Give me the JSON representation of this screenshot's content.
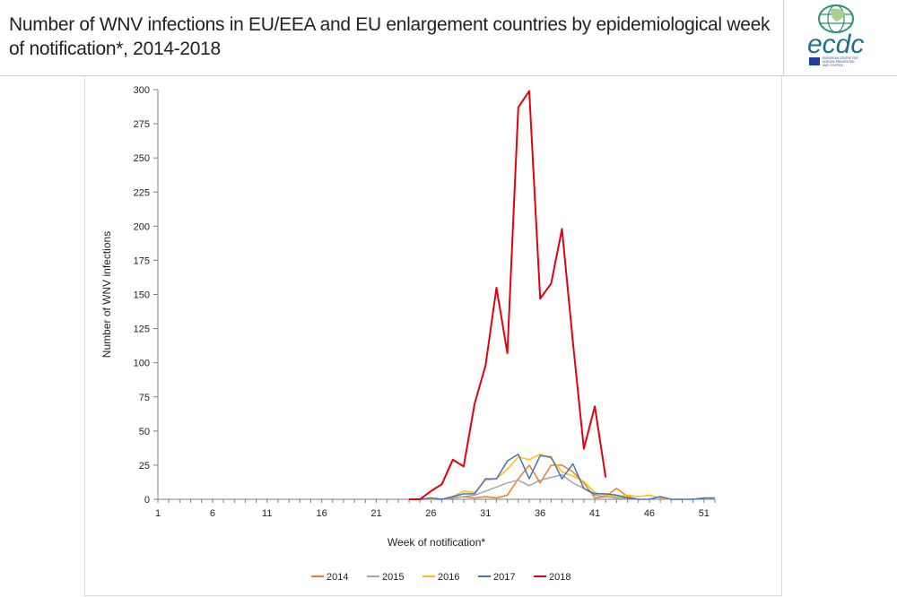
{
  "header": {
    "title": "Number of WNV infections in EU/EEA and EU enlargement countries by epidemiological week of notification*, 2014-2018",
    "logo": {
      "icon": "ecdc-logo-icon",
      "wordmark": "ecdc",
      "subtitle_lines": [
        "EUROPEAN CENTRE FOR",
        "DISEASE PREVENTION",
        "AND CONTROL"
      ],
      "colors": {
        "globe": "#2f8f6f",
        "globe_fill": "#a9d08e",
        "wordmark": "#1e6f8f",
        "eu_flag": "#1f3f9f"
      }
    }
  },
  "chart_data": {
    "type": "line",
    "title": "",
    "xlabel": "Week of notification*",
    "ylabel": "Number of WNV infections",
    "xlim": [
      1,
      52
    ],
    "ylim": [
      0,
      300
    ],
    "x_ticks": [
      1,
      6,
      11,
      16,
      21,
      26,
      31,
      36,
      41,
      46,
      51
    ],
    "y_ticks": [
      0,
      25,
      50,
      75,
      100,
      125,
      150,
      175,
      200,
      225,
      250,
      275,
      300
    ],
    "grid": false,
    "legend": "bottom",
    "series": [
      {
        "name": "2014",
        "color": "#ed7d31",
        "x": [
          25,
          26,
          27,
          28,
          29,
          30,
          31,
          32,
          33,
          34,
          35,
          36,
          37,
          38,
          39,
          40,
          41,
          42,
          43,
          44,
          45
        ],
        "values": [
          0,
          0,
          0,
          1,
          2,
          1,
          2,
          1,
          3,
          15,
          25,
          12,
          25,
          25,
          20,
          12,
          1,
          2,
          8,
          2,
          0
        ]
      },
      {
        "name": "2015",
        "color": "#a5a5a5",
        "x": [
          25,
          26,
          27,
          28,
          29,
          30,
          31,
          32,
          33,
          34,
          35,
          36,
          37,
          38,
          39,
          40,
          41,
          42,
          43,
          44,
          45
        ],
        "values": [
          0,
          0,
          0,
          1,
          2,
          3,
          6,
          9,
          12,
          14,
          10,
          14,
          16,
          18,
          12,
          8,
          3,
          2,
          1,
          1,
          0
        ]
      },
      {
        "name": "2016",
        "color": "#ffc000",
        "x": [
          25,
          26,
          27,
          28,
          29,
          30,
          31,
          32,
          33,
          34,
          35,
          36,
          37,
          38,
          39,
          40,
          41,
          42,
          43,
          44,
          45,
          46,
          47,
          48
        ],
        "values": [
          0,
          0,
          0,
          2,
          6,
          5,
          14,
          15,
          22,
          31,
          29,
          33,
          30,
          20,
          17,
          13,
          5,
          3,
          2,
          3,
          2,
          3,
          1,
          0
        ]
      },
      {
        "name": "2017",
        "color": "#4472c4",
        "x": [
          25,
          26,
          27,
          28,
          29,
          30,
          31,
          32,
          33,
          34,
          35,
          36,
          37,
          38,
          39,
          40,
          41,
          42,
          43,
          44,
          45,
          46,
          47,
          48,
          49,
          50,
          51,
          52
        ],
        "values": [
          0,
          1,
          0,
          2,
          4,
          4,
          15,
          15,
          28,
          33,
          15,
          32,
          31,
          15,
          26,
          8,
          4,
          4,
          3,
          1,
          0,
          0,
          2,
          0,
          0,
          0,
          1,
          1
        ]
      },
      {
        "name": "2018",
        "color": "#e3000f",
        "x": [
          24,
          25,
          26,
          27,
          28,
          29,
          30,
          31,
          32,
          33,
          34,
          35,
          36,
          37,
          38,
          39,
          40,
          41,
          42
        ],
        "values": [
          0,
          0,
          6,
          11,
          29,
          24,
          70,
          98,
          155,
          107,
          287,
          299,
          147,
          158,
          198,
          115,
          37,
          68,
          16
        ]
      }
    ]
  }
}
